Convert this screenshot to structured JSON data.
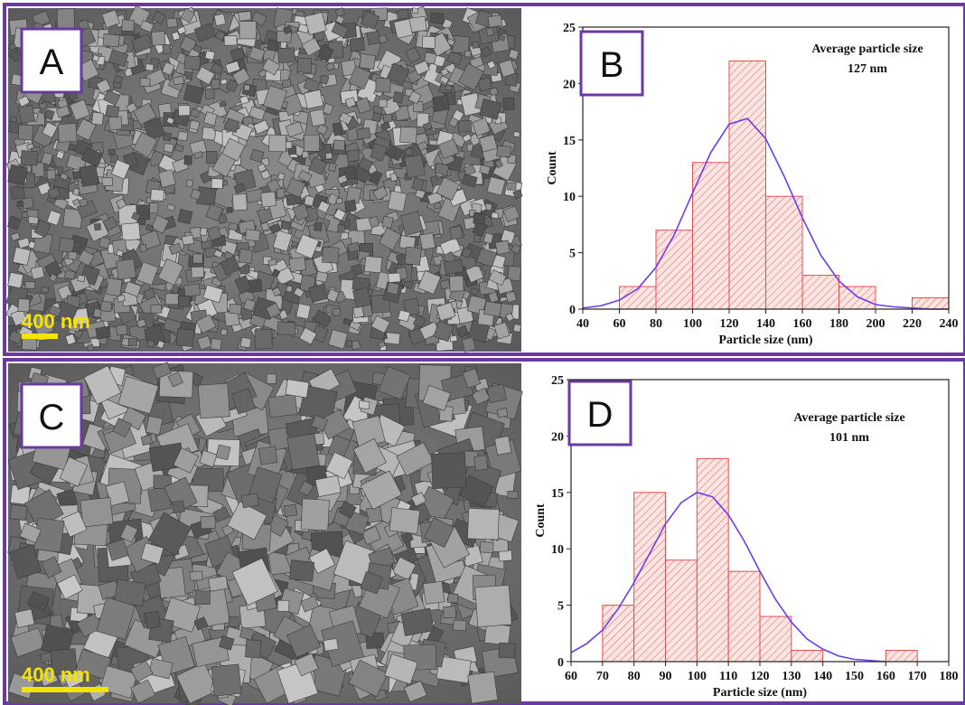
{
  "images": [
    {
      "panel": "A",
      "scale_bar": "400 nm"
    },
    {
      "panel": "C",
      "scale_bar": "400 nm"
    }
  ],
  "chart_data": [
    {
      "type": "histogram",
      "panel": "B",
      "bins": [
        60,
        80,
        100,
        120,
        140,
        160,
        180,
        200,
        220,
        240
      ],
      "counts": [
        2,
        7,
        13,
        22,
        10,
        3,
        2,
        0,
        1
      ],
      "color": "#e05050",
      "xlim": [
        40,
        240
      ],
      "xticks": [
        40,
        60,
        80,
        100,
        120,
        140,
        160,
        180,
        200,
        220,
        240
      ],
      "ylim": [
        0,
        25
      ],
      "yticks": [
        0,
        5,
        10,
        15,
        20,
        25
      ],
      "xlabel": "Particle size (nm)",
      "ylabel": "Count",
      "annotation": [
        "Average particle size",
        "127 nm"
      ],
      "curve": {
        "color": "#6a3cf0",
        "x": [
          40,
          50,
          60,
          70,
          80,
          90,
          100,
          110,
          120,
          130,
          140,
          150,
          160,
          170,
          180,
          190,
          200,
          210,
          220,
          230,
          240
        ],
        "y": [
          0.1,
          0.3,
          0.8,
          1.8,
          3.7,
          6.6,
          10.3,
          13.9,
          16.4,
          16.9,
          15.1,
          11.8,
          8.1,
          4.8,
          2.5,
          1.1,
          0.4,
          0.2,
          0.1,
          0,
          0
        ]
      }
    },
    {
      "type": "histogram",
      "panel": "D",
      "bins": [
        70,
        80,
        90,
        100,
        110,
        120,
        130,
        140,
        150,
        160,
        170
      ],
      "counts": [
        5,
        15,
        9,
        18,
        8,
        4,
        1,
        0,
        0,
        1
      ],
      "color": "#e05050",
      "xlim": [
        60,
        180
      ],
      "xticks": [
        60,
        70,
        80,
        90,
        100,
        110,
        120,
        130,
        140,
        150,
        160,
        170,
        180
      ],
      "ylim": [
        0,
        25
      ],
      "yticks": [
        0,
        5,
        10,
        15,
        20,
        25
      ],
      "xlabel": "Particle size (nm)",
      "ylabel": "Count",
      "annotation": [
        "Average particle size",
        "101 nm"
      ],
      "curve": {
        "color": "#6a3cf0",
        "x": [
          60,
          65,
          70,
          75,
          80,
          85,
          90,
          95,
          100,
          105,
          110,
          115,
          120,
          125,
          130,
          135,
          140,
          145,
          150,
          155,
          160
        ],
        "y": [
          0.8,
          1.6,
          2.8,
          4.7,
          7.0,
          9.6,
          12.2,
          14.1,
          15.0,
          14.6,
          13.0,
          10.7,
          8.0,
          5.5,
          3.5,
          2.0,
          1.1,
          0.5,
          0.2,
          0.1,
          0
        ]
      }
    }
  ]
}
